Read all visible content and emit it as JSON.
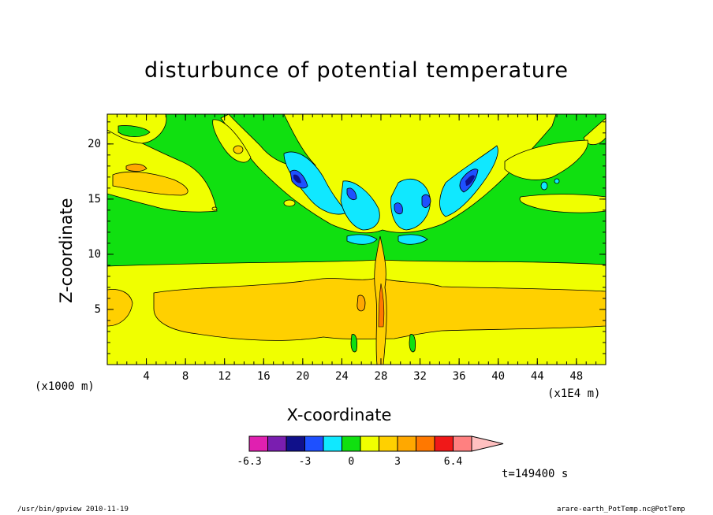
{
  "chart_data": {
    "type": "heatmap",
    "title": "disturbunce of potential temperature",
    "xlabel": "X-coordinate",
    "ylabel": "Z-coordinate",
    "x_unit_label": "(x1000 m)",
    "x_scale_label": "(x1E4 m)",
    "x_ticks": [
      "4",
      "8",
      "12",
      "16",
      "20",
      "24",
      "28",
      "32",
      "36",
      "40",
      "44",
      "48"
    ],
    "y_ticks": [
      "5",
      "10",
      "15",
      "20"
    ],
    "xlim": [
      0,
      51
    ],
    "ylim": [
      0,
      22.7
    ],
    "colorbar": {
      "labels": [
        "-6.3",
        "-3",
        "0",
        "3",
        "6.4"
      ],
      "colors": [
        "#e020b0",
        "#7a1eb0",
        "#10108a",
        "#1e50ff",
        "#10e8ff",
        "#10e010",
        "#f0ff00",
        "#ffd000",
        "#ffa800",
        "#ff7800",
        "#f01818",
        "#ff8080",
        "#ffc0c0"
      ]
    },
    "time_label": "t=149400 s"
  },
  "footer": {
    "left": "/usr/bin/gpview  2010-11-19",
    "right": "arare-earth_PotTemp.nc@PotTemp"
  }
}
